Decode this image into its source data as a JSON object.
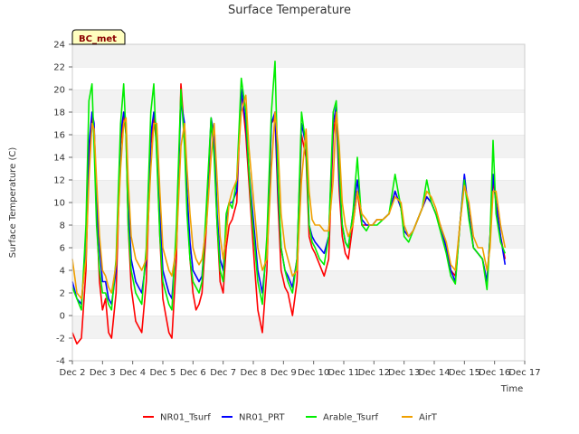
{
  "chart_data": {
    "type": "line",
    "title": "Surface Temperature",
    "xlabel": "Time",
    "ylabel": "Surface Temperature (C)",
    "badge": "BC_met",
    "xlim": [
      2,
      17
    ],
    "ylim": [
      -4,
      24
    ],
    "x_ticks": [
      2,
      3,
      4,
      5,
      6,
      7,
      8,
      9,
      10,
      11,
      12,
      13,
      14,
      15,
      16,
      17
    ],
    "x_tick_labels": [
      "Dec 2",
      "Dec 3",
      "Dec 4",
      "Dec 5",
      "Dec 6",
      "Dec 7",
      "Dec 8",
      "Dec 9",
      "Dec 10",
      "Dec 11",
      "Dec 12",
      "Dec 13",
      "Dec 14",
      "Dec 15",
      "Dec 16",
      "Dec 17"
    ],
    "y_ticks": [
      -4,
      -2,
      0,
      2,
      4,
      6,
      8,
      10,
      12,
      14,
      16,
      18,
      20,
      22,
      24
    ],
    "grid": "horizontal bands",
    "legend": "bottom",
    "series": [
      {
        "name": "NR01_Tsurf",
        "color": "#ff0000",
        "x": [
          2.0,
          2.15,
          2.3,
          2.45,
          2.55,
          2.65,
          2.72,
          2.8,
          2.9,
          3.0,
          3.1,
          3.2,
          3.3,
          3.45,
          3.6,
          3.7,
          3.78,
          3.85,
          3.95,
          4.1,
          4.2,
          4.3,
          4.45,
          4.6,
          4.7,
          4.8,
          4.9,
          5.0,
          5.1,
          5.2,
          5.3,
          5.45,
          5.6,
          5.72,
          5.8,
          5.9,
          6.0,
          6.1,
          6.2,
          6.3,
          6.45,
          6.6,
          6.7,
          6.8,
          6.9,
          7.0,
          7.1,
          7.2,
          7.3,
          7.45,
          7.6,
          7.75,
          7.85,
          7.95,
          8.05,
          8.15,
          8.3,
          8.45,
          8.6,
          8.72,
          8.82,
          8.92,
          9.05,
          9.15,
          9.3,
          9.45,
          9.6,
          9.75,
          9.85,
          9.95,
          10.05,
          10.2,
          10.35,
          10.5,
          10.65,
          10.75,
          10.85,
          10.95,
          11.05,
          11.15,
          11.3,
          11.45,
          11.6,
          11.75,
          11.85,
          11.95,
          12.1,
          12.3,
          12.5,
          12.7,
          12.9,
          13.0,
          13.15,
          13.3,
          13.45,
          13.6,
          13.75,
          13.9,
          14.05,
          14.2,
          14.4,
          14.55,
          14.7,
          14.85,
          15.0,
          15.15,
          15.3,
          15.45,
          15.6,
          15.75,
          15.85,
          15.95,
          16.05,
          16.2,
          16.35
        ],
        "y": [
          -1.5,
          -2.5,
          -2.0,
          4.0,
          14.0,
          17.5,
          16.0,
          9.0,
          3.0,
          0.5,
          1.5,
          -1.5,
          -2.0,
          2.0,
          15.0,
          18.0,
          16.0,
          8.0,
          2.5,
          -0.5,
          -1.0,
          -1.5,
          3.0,
          15.0,
          17.5,
          15.0,
          7.0,
          1.5,
          0.0,
          -1.5,
          -2.0,
          5.0,
          20.5,
          16.0,
          10.0,
          5.0,
          2.0,
          0.5,
          1.0,
          2.0,
          8.0,
          17.0,
          15.0,
          8.0,
          3.0,
          2.0,
          6.0,
          8.0,
          8.5,
          10.0,
          20.0,
          16.0,
          12.0,
          8.0,
          4.0,
          0.5,
          -1.5,
          4.0,
          17.0,
          17.5,
          10.0,
          4.0,
          2.5,
          2.0,
          0.0,
          3.0,
          16.0,
          14.0,
          7.0,
          6.0,
          5.5,
          4.5,
          3.5,
          5.0,
          16.0,
          18.0,
          11.0,
          7.0,
          5.5,
          5.0,
          8.0,
          11.0,
          8.0,
          8.0,
          8.0,
          8.0,
          8.5,
          8.5,
          9.0,
          11.0,
          9.5,
          7.5,
          7.0,
          7.5,
          8.5,
          9.5,
          10.5,
          10.0,
          9.0,
          8.0,
          6.0,
          4.0,
          3.5,
          8.0,
          12.0,
          9.0,
          6.0,
          5.5,
          5.0,
          3.0,
          7.0,
          12.0,
          10.0,
          7.0,
          5.0
        ]
      },
      {
        "name": "NR01_PRT",
        "color": "#0000ff",
        "x": [
          2.0,
          2.15,
          2.3,
          2.45,
          2.55,
          2.65,
          2.72,
          2.8,
          2.9,
          3.0,
          3.1,
          3.2,
          3.3,
          3.45,
          3.6,
          3.7,
          3.78,
          3.85,
          3.95,
          4.1,
          4.2,
          4.3,
          4.45,
          4.6,
          4.7,
          4.8,
          4.9,
          5.0,
          5.1,
          5.2,
          5.3,
          5.45,
          5.6,
          5.72,
          5.8,
          5.9,
          6.0,
          6.1,
          6.2,
          6.3,
          6.45,
          6.6,
          6.7,
          6.8,
          6.9,
          7.0,
          7.1,
          7.2,
          7.3,
          7.45,
          7.6,
          7.75,
          7.85,
          7.95,
          8.05,
          8.15,
          8.3,
          8.45,
          8.6,
          8.72,
          8.82,
          8.92,
          9.05,
          9.15,
          9.3,
          9.45,
          9.6,
          9.75,
          9.85,
          9.95,
          10.05,
          10.2,
          10.35,
          10.5,
          10.65,
          10.75,
          10.85,
          10.95,
          11.05,
          11.15,
          11.3,
          11.45,
          11.6,
          11.75,
          11.85,
          11.95,
          12.1,
          12.3,
          12.5,
          12.7,
          12.9,
          13.0,
          13.15,
          13.3,
          13.45,
          13.6,
          13.75,
          13.9,
          14.05,
          14.2,
          14.4,
          14.55,
          14.7,
          14.85,
          15.0,
          15.15,
          15.3,
          15.45,
          15.6,
          15.75,
          15.85,
          15.95,
          16.05,
          16.2,
          16.35
        ],
        "y": [
          3.0,
          1.5,
          1.0,
          6.0,
          15.0,
          18.0,
          17.0,
          10.0,
          6.0,
          3.0,
          3.0,
          1.5,
          1.0,
          4.0,
          16.0,
          18.0,
          17.0,
          10.0,
          5.0,
          3.0,
          2.5,
          2.0,
          5.0,
          16.0,
          18.0,
          16.5,
          9.0,
          4.0,
          3.0,
          2.0,
          1.5,
          7.0,
          19.0,
          17.0,
          11.0,
          6.5,
          4.0,
          3.5,
          3.0,
          3.5,
          9.0,
          17.5,
          16.0,
          9.0,
          5.0,
          4.0,
          8.0,
          10.0,
          10.0,
          11.0,
          20.0,
          17.0,
          13.0,
          10.0,
          7.0,
          4.0,
          2.0,
          6.0,
          17.0,
          18.0,
          11.0,
          6.0,
          4.0,
          3.5,
          2.5,
          5.0,
          17.0,
          15.0,
          8.0,
          7.0,
          6.5,
          6.0,
          5.5,
          7.0,
          17.0,
          18.5,
          12.0,
          8.0,
          6.5,
          6.0,
          9.0,
          12.0,
          8.5,
          8.0,
          8.0,
          8.0,
          8.5,
          8.5,
          9.0,
          11.0,
          9.5,
          7.5,
          7.0,
          7.5,
          8.5,
          9.5,
          10.5,
          10.0,
          9.0,
          8.0,
          6.0,
          4.0,
          3.0,
          8.0,
          12.5,
          9.0,
          6.0,
          5.5,
          5.0,
          3.0,
          7.0,
          12.5,
          10.0,
          7.0,
          4.5
        ]
      },
      {
        "name": "Arable_Tsurf",
        "color": "#00ee00",
        "x": [
          2.0,
          2.15,
          2.3,
          2.45,
          2.55,
          2.65,
          2.72,
          2.8,
          2.9,
          3.0,
          3.1,
          3.2,
          3.3,
          3.45,
          3.6,
          3.7,
          3.78,
          3.85,
          3.95,
          4.1,
          4.2,
          4.3,
          4.45,
          4.6,
          4.7,
          4.8,
          4.9,
          5.0,
          5.1,
          5.2,
          5.3,
          5.45,
          5.6,
          5.72,
          5.8,
          5.9,
          6.0,
          6.1,
          6.2,
          6.3,
          6.45,
          6.6,
          6.7,
          6.8,
          6.9,
          7.0,
          7.1,
          7.2,
          7.3,
          7.45,
          7.6,
          7.75,
          7.85,
          7.95,
          8.05,
          8.15,
          8.3,
          8.45,
          8.6,
          8.72,
          8.82,
          8.92,
          9.05,
          9.15,
          9.3,
          9.45,
          9.6,
          9.75,
          9.85,
          9.95,
          10.05,
          10.2,
          10.35,
          10.5,
          10.65,
          10.75,
          10.85,
          10.95,
          11.05,
          11.15,
          11.3,
          11.45,
          11.6,
          11.75,
          11.85,
          11.95,
          12.1,
          12.3,
          12.5,
          12.7,
          12.9,
          13.0,
          13.15,
          13.3,
          13.45,
          13.6,
          13.75,
          13.9,
          14.05,
          14.2,
          14.4,
          14.55,
          14.7,
          14.85,
          15.0,
          15.15,
          15.3,
          15.45,
          15.6,
          15.75,
          15.85,
          15.95,
          16.05,
          16.2,
          16.35
        ],
        "y": [
          2.5,
          1.5,
          0.5,
          8.0,
          19.0,
          20.5,
          15.0,
          8.0,
          4.0,
          2.0,
          2.0,
          1.0,
          0.5,
          5.0,
          17.0,
          20.5,
          16.0,
          8.0,
          4.0,
          2.0,
          1.5,
          1.0,
          6.0,
          18.0,
          20.5,
          14.0,
          7.0,
          3.0,
          2.0,
          1.0,
          0.5,
          8.0,
          20.0,
          15.0,
          9.0,
          5.0,
          3.0,
          2.5,
          2.0,
          3.0,
          10.0,
          17.5,
          14.0,
          8.0,
          4.0,
          3.0,
          9.0,
          10.0,
          9.5,
          12.0,
          21.0,
          18.0,
          13.0,
          9.0,
          6.0,
          3.0,
          1.0,
          7.0,
          18.0,
          22.5,
          12.0,
          6.0,
          4.0,
          3.0,
          2.0,
          5.0,
          18.0,
          15.0,
          8.0,
          6.5,
          6.0,
          5.0,
          4.5,
          7.0,
          18.0,
          19.0,
          13.0,
          8.0,
          6.5,
          6.0,
          9.0,
          14.0,
          8.0,
          7.5,
          8.0,
          8.0,
          8.0,
          8.5,
          9.0,
          12.5,
          9.5,
          7.0,
          6.5,
          7.5,
          8.5,
          9.5,
          12.0,
          10.0,
          9.0,
          7.5,
          5.5,
          3.5,
          2.8,
          8.0,
          12.0,
          8.5,
          6.0,
          5.5,
          5.0,
          2.3,
          7.0,
          15.5,
          9.0,
          6.5,
          5.5
        ]
      },
      {
        "name": "AirT",
        "color": "#f0a000",
        "x": [
          2.0,
          2.15,
          2.3,
          2.45,
          2.55,
          2.65,
          2.72,
          2.8,
          2.9,
          3.0,
          3.1,
          3.2,
          3.3,
          3.45,
          3.6,
          3.7,
          3.78,
          3.85,
          3.95,
          4.1,
          4.2,
          4.3,
          4.45,
          4.6,
          4.7,
          4.8,
          4.9,
          5.0,
          5.1,
          5.2,
          5.3,
          5.45,
          5.6,
          5.72,
          5.8,
          5.9,
          6.0,
          6.1,
          6.2,
          6.3,
          6.45,
          6.6,
          6.7,
          6.8,
          6.9,
          7.0,
          7.1,
          7.2,
          7.3,
          7.45,
          7.6,
          7.75,
          7.85,
          7.95,
          8.05,
          8.15,
          8.3,
          8.45,
          8.6,
          8.72,
          8.82,
          8.92,
          9.05,
          9.15,
          9.3,
          9.45,
          9.6,
          9.75,
          9.85,
          9.95,
          10.05,
          10.2,
          10.35,
          10.5,
          10.65,
          10.75,
          10.85,
          10.95,
          11.05,
          11.15,
          11.3,
          11.45,
          11.6,
          11.75,
          11.85,
          11.95,
          12.1,
          12.3,
          12.5,
          12.7,
          12.9,
          13.0,
          13.15,
          13.3,
          13.45,
          13.6,
          13.75,
          13.9,
          14.05,
          14.2,
          14.4,
          14.55,
          14.7,
          14.85,
          15.0,
          15.15,
          15.3,
          15.45,
          15.6,
          15.75,
          15.85,
          15.95,
          16.05,
          16.2,
          16.35
        ],
        "y": [
          5.0,
          2.0,
          1.5,
          5.0,
          12.0,
          17.0,
          16.5,
          12.0,
          7.0,
          4.0,
          3.5,
          2.5,
          2.0,
          4.5,
          13.0,
          17.0,
          17.5,
          12.0,
          7.0,
          5.0,
          4.5,
          4.0,
          5.0,
          13.0,
          17.0,
          17.0,
          11.0,
          6.0,
          5.0,
          4.0,
          3.5,
          6.0,
          15.0,
          17.0,
          13.0,
          9.0,
          6.0,
          5.0,
          4.5,
          5.0,
          8.0,
          14.0,
          17.0,
          12.0,
          7.0,
          5.0,
          7.0,
          10.0,
          11.0,
          12.0,
          18.0,
          19.5,
          15.0,
          12.0,
          9.0,
          6.0,
          4.0,
          5.0,
          13.0,
          18.0,
          15.0,
          9.0,
          6.0,
          5.0,
          3.5,
          4.0,
          12.0,
          16.5,
          11.0,
          8.5,
          8.0,
          8.0,
          7.5,
          7.5,
          12.0,
          18.0,
          15.0,
          10.0,
          8.0,
          7.0,
          8.0,
          11.0,
          9.0,
          8.5,
          8.0,
          8.0,
          8.5,
          8.5,
          9.0,
          10.5,
          10.0,
          8.0,
          7.0,
          7.5,
          8.5,
          9.5,
          11.0,
          10.5,
          9.5,
          8.0,
          6.5,
          4.5,
          4.0,
          8.0,
          11.5,
          10.0,
          7.0,
          6.0,
          6.0,
          4.0,
          6.0,
          11.0,
          11.0,
          8.0,
          6.0
        ]
      }
    ]
  }
}
